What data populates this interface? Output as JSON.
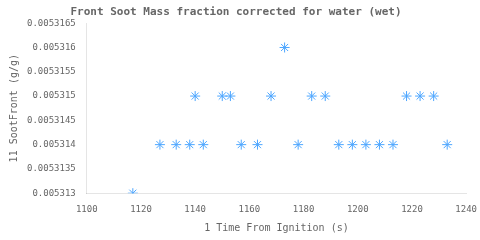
{
  "chart_data": {
    "type": "scatter",
    "title": "Front Soot Mass fraction corrected for water (wet)",
    "xlabel": "1 Time From Ignition (s)",
    "ylabel": "11 SootFront (g/g)",
    "x": [
      1117,
      1127,
      1133,
      1138,
      1140,
      1143,
      1150,
      1153,
      1157,
      1163,
      1168,
      1173,
      1178,
      1183,
      1188,
      1193,
      1198,
      1203,
      1208,
      1213,
      1218,
      1223,
      1228,
      1233
    ],
    "values": [
      0.005313,
      0.005314,
      0.005314,
      0.005314,
      0.005315,
      0.005314,
      0.005315,
      0.005315,
      0.005314,
      0.005314,
      0.005315,
      0.005316,
      0.005314,
      0.005315,
      0.005315,
      0.005314,
      0.005314,
      0.005314,
      0.005314,
      0.005314,
      0.005315,
      0.005315,
      0.005315,
      0.005314
    ],
    "color": "#4da6ff",
    "marker": "star",
    "xlim": [
      1100,
      1240
    ],
    "ylim": [
      0.005313,
      0.0053165
    ],
    "xticks": [
      1100,
      1120,
      1140,
      1160,
      1180,
      1200,
      1220,
      1240
    ],
    "yticks": [
      0.005313,
      0.0053135,
      0.005314,
      0.0053145,
      0.005315,
      0.0053155,
      0.005316,
      0.0053165
    ],
    "grid": false
  }
}
